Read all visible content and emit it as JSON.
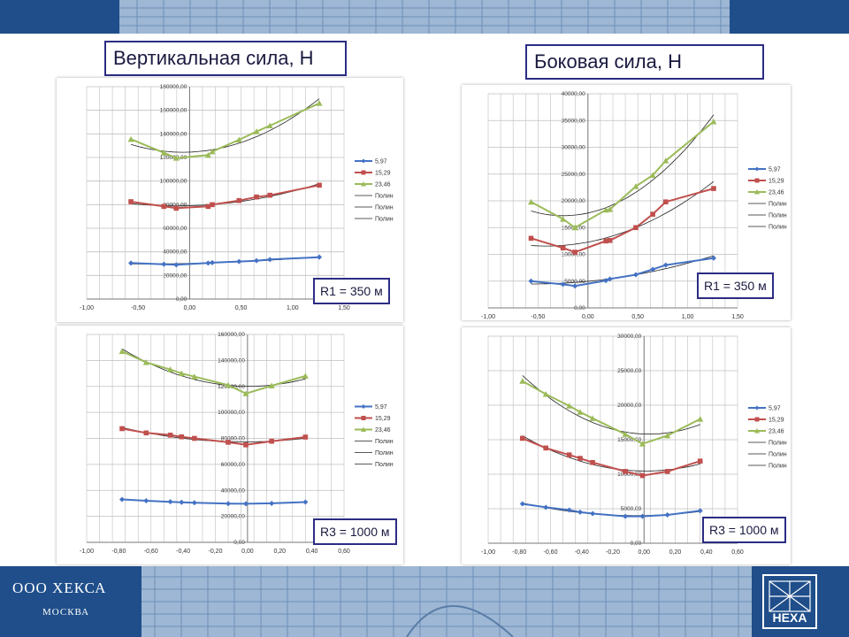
{
  "titles": {
    "vertical": "Вертикальная сила, Н",
    "lateral": "Боковая сила, Н"
  },
  "footer": {
    "company": "ООО ХЕКСА",
    "city": "МОСКВА",
    "logo_text": "HEXA"
  },
  "colors": {
    "band": "#1f4e8a",
    "series": [
      "#4472c4",
      "#c0504d",
      "#9bbb59"
    ],
    "trend": "#222222",
    "grid": "#bfbfbf"
  },
  "chart_data": [
    {
      "type": "line",
      "id": "vertical-r1",
      "annotation": "R1 = 350 м",
      "xlim": [
        -1,
        1.5
      ],
      "xticks": [
        "-1,00",
        "-0,50",
        "0,00",
        "0,50",
        "1,00",
        "1,50"
      ],
      "ylim": [
        0,
        180000
      ],
      "yticks": [
        "0,00",
        "20000,00",
        "40000,00",
        "60000,00",
        "80000,00",
        "100000,00",
        "120000,00",
        "140000,00",
        "160000,00",
        "180000,00"
      ],
      "legend": [
        "5,97",
        "15,29",
        "23,46",
        "Полин",
        "Полин",
        "Полин"
      ],
      "series": [
        {
          "name": "5,97",
          "x": [
            -0.57,
            -0.25,
            -0.13,
            0.18,
            0.22,
            0.48,
            0.65,
            0.78,
            1.26
          ],
          "y": [
            30500,
            29500,
            29000,
            30500,
            30800,
            31800,
            32500,
            33500,
            35500
          ]
        },
        {
          "name": "15,29",
          "x": [
            -0.57,
            -0.25,
            -0.13,
            0.18,
            0.22,
            0.48,
            0.65,
            0.78,
            1.26
          ],
          "y": [
            82500,
            78500,
            77000,
            78500,
            80000,
            83500,
            86500,
            88000,
            96500
          ]
        },
        {
          "name": "23,46",
          "x": [
            -0.57,
            -0.25,
            -0.13,
            0.18,
            0.22,
            0.48,
            0.65,
            0.78,
            1.26
          ],
          "y": [
            135500,
            124000,
            119500,
            122000,
            125000,
            135000,
            142000,
            147000,
            166000
          ]
        }
      ]
    },
    {
      "type": "line",
      "id": "lateral-r1",
      "annotation": "R1 = 350 м",
      "xlim": [
        -1,
        1.5
      ],
      "xticks": [
        "-1,00",
        "-0,50",
        "0,00",
        "0,50",
        "1,00",
        "1,50"
      ],
      "ylim": [
        0,
        40000
      ],
      "yticks": [
        "0,00",
        "5000,00",
        "10000,00",
        "15000,00",
        "20000,00",
        "25000,00",
        "30000,00",
        "35000,00",
        "40000,00"
      ],
      "legend": [
        "5,97",
        "15,29",
        "23,46",
        "Полин",
        "Полин",
        "Полин"
      ],
      "series": [
        {
          "name": "5,97",
          "x": [
            -0.57,
            -0.25,
            -0.13,
            0.18,
            0.22,
            0.48,
            0.65,
            0.78,
            1.26
          ],
          "y": [
            5000,
            4400,
            4100,
            5100,
            5400,
            6200,
            7200,
            8000,
            9300
          ]
        },
        {
          "name": "15,29",
          "x": [
            -0.57,
            -0.25,
            -0.13,
            0.18,
            0.22,
            0.48,
            0.65,
            0.78,
            1.26
          ],
          "y": [
            13000,
            11200,
            10400,
            12500,
            12600,
            15000,
            17500,
            19800,
            22300
          ]
        },
        {
          "name": "23,46",
          "x": [
            -0.57,
            -0.25,
            -0.13,
            0.18,
            0.22,
            0.48,
            0.65,
            0.78,
            1.26
          ],
          "y": [
            19800,
            16600,
            15000,
            18300,
            18400,
            22700,
            24800,
            27500,
            34800
          ]
        }
      ]
    },
    {
      "type": "line",
      "id": "vertical-r3",
      "annotation": "R3 = 1000 м",
      "xlim": [
        -1,
        0.6
      ],
      "xticks": [
        "-1,00",
        "-0,80",
        "-0,60",
        "-0,40",
        "-0,20",
        "0,00",
        "0,20",
        "0,40",
        "0,60"
      ],
      "ylim": [
        0,
        160000
      ],
      "yticks": [
        "0,00",
        "20000,00",
        "40000,00",
        "60000,00",
        "80000,00",
        "100000,00",
        "120000,00",
        "140000,00",
        "160000,00"
      ],
      "legend": [
        "5,97",
        "15,29",
        "23,46",
        "Полин",
        "Полин",
        "Полин"
      ],
      "series": [
        {
          "name": "5,97",
          "x": [
            -0.78,
            -0.63,
            -0.48,
            -0.41,
            -0.33,
            -0.12,
            -0.01,
            0.15,
            0.36
          ],
          "y": [
            33000,
            32000,
            31200,
            30800,
            30500,
            29800,
            29700,
            30000,
            31000
          ]
        },
        {
          "name": "15,29",
          "x": [
            -0.78,
            -0.63,
            -0.48,
            -0.41,
            -0.33,
            -0.12,
            -0.01,
            0.15,
            0.36
          ],
          "y": [
            87500,
            84200,
            82500,
            81200,
            80000,
            77000,
            75000,
            77800,
            81000
          ]
        },
        {
          "name": "23,46",
          "x": [
            -0.78,
            -0.63,
            -0.48,
            -0.41,
            -0.33,
            -0.12,
            -0.01,
            0.15,
            0.36
          ],
          "y": [
            147000,
            138500,
            133000,
            130000,
            127500,
            121000,
            114500,
            120500,
            128000
          ]
        }
      ]
    },
    {
      "type": "line",
      "id": "lateral-r3",
      "annotation": "R3 = 1000 м",
      "xlim": [
        -1,
        0.6
      ],
      "xticks": [
        "-1,00",
        "-0,80",
        "-0,60",
        "-0,40",
        "-0,20",
        "0,00",
        "0,20",
        "0,40",
        "0,60"
      ],
      "ylim": [
        0,
        30000
      ],
      "yticks": [
        "0,00",
        "5000,00",
        "10000,00",
        "15000,00",
        "20000,00",
        "25000,00",
        "30000,00"
      ],
      "legend": [
        "5,97",
        "15,29",
        "23,46",
        "Полин",
        "Полин",
        "Полин"
      ],
      "series": [
        {
          "name": "5,97",
          "x": [
            -0.78,
            -0.63,
            -0.48,
            -0.41,
            -0.33,
            -0.12,
            -0.01,
            0.15,
            0.36
          ],
          "y": [
            5700,
            5200,
            4800,
            4500,
            4300,
            3900,
            3900,
            4100,
            4700
          ]
        },
        {
          "name": "15,29",
          "x": [
            -0.78,
            -0.63,
            -0.48,
            -0.41,
            -0.33,
            -0.12,
            -0.01,
            0.15,
            0.36
          ],
          "y": [
            15200,
            13800,
            12800,
            12300,
            11700,
            10400,
            9800,
            10400,
            11900
          ]
        },
        {
          "name": "23,46",
          "x": [
            -0.78,
            -0.63,
            -0.48,
            -0.41,
            -0.33,
            -0.12,
            -0.01,
            0.15,
            0.36
          ],
          "y": [
            23500,
            21600,
            19900,
            19000,
            18100,
            15800,
            14400,
            15600,
            18000
          ]
        }
      ]
    }
  ]
}
